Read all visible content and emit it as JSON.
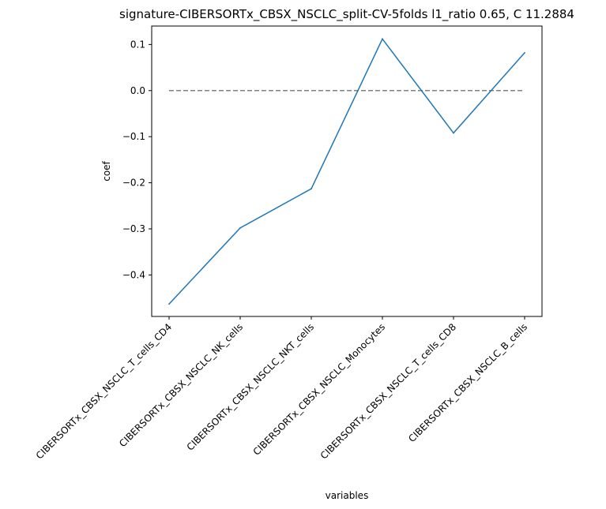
{
  "chart_data": {
    "type": "line",
    "title": "signature-CIBERSORTx_CBSX_NSCLC_split-CV-5folds l1_ratio 0.65, C 11.2884",
    "xlabel": "variables",
    "ylabel": "coef",
    "categories": [
      "CIBERSORTx_CBSX_NSCLC_T_cells_CD4",
      "CIBERSORTx_CBSX_NSCLC_NK_cells",
      "CIBERSORTx_CBSX_NSCLC_NKT_cells",
      "CIBERSORTx_CBSX_NSCLC_Monocytes",
      "CIBERSORTx_CBSX_NSCLC_T_cells_CD8",
      "CIBERSORTx_CBSX_NSCLC_B_cells"
    ],
    "series": [
      {
        "values": [
          -0.463,
          -0.298,
          -0.213,
          0.112,
          -0.092,
          0.082
        ],
        "color": "#1f77b4"
      }
    ],
    "reference_line": {
      "y": 0.0,
      "style": "dashed",
      "color": "#808080"
    },
    "ylim": [
      -0.49,
      0.14
    ],
    "yticks": [
      0.1,
      0.0,
      -0.1,
      -0.2,
      -0.3,
      -0.4
    ],
    "ytick_labels": [
      "0.1",
      "0.0",
      "−0.1",
      "−0.2",
      "−0.3",
      "−0.4"
    ],
    "grid": false,
    "legend": "none"
  }
}
